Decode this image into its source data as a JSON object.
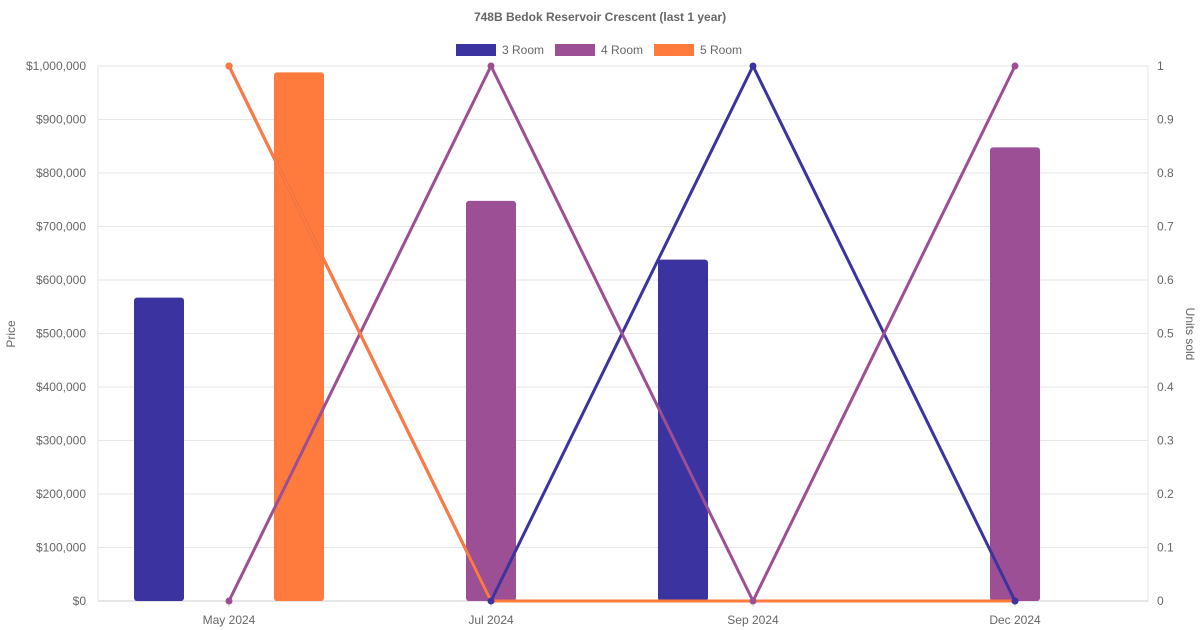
{
  "chart_data": {
    "type": "bar",
    "title": "748B Bedok Reservoir Crescent (last 1 year)",
    "categories": [
      "May 2024",
      "Jul 2024",
      "Sep 2024",
      "Dec 2024"
    ],
    "y_left": {
      "label": "Price",
      "range": [
        0,
        1000000
      ],
      "ticks": [
        "$0",
        "$100,000",
        "$200,000",
        "$300,000",
        "$400,000",
        "$500,000",
        "$600,000",
        "$700,000",
        "$800,000",
        "$900,000",
        "$1,000,000"
      ]
    },
    "y_right": {
      "label": "Units sold",
      "range": [
        0,
        1
      ],
      "ticks": [
        "0",
        "0.1",
        "0.2",
        "0.3",
        "0.4",
        "0.5",
        "0.6",
        "0.7",
        "0.8",
        "0.9",
        "1"
      ]
    },
    "grid": true,
    "legend_position": "top",
    "series": [
      {
        "name": "3 Room",
        "color": "#3a33a0",
        "price": [
          567000,
          0,
          638000,
          0
        ],
        "units": [
          1,
          0,
          1,
          0
        ]
      },
      {
        "name": "4 Room",
        "color": "#9c4f94",
        "price": [
          0,
          748000,
          0,
          848000
        ],
        "units": [
          0,
          1,
          0,
          1
        ]
      },
      {
        "name": "5 Room",
        "color": "#ff7a3d",
        "price": [
          988000,
          0,
          0,
          0
        ],
        "units": [
          1,
          0,
          0,
          0
        ]
      }
    ]
  }
}
